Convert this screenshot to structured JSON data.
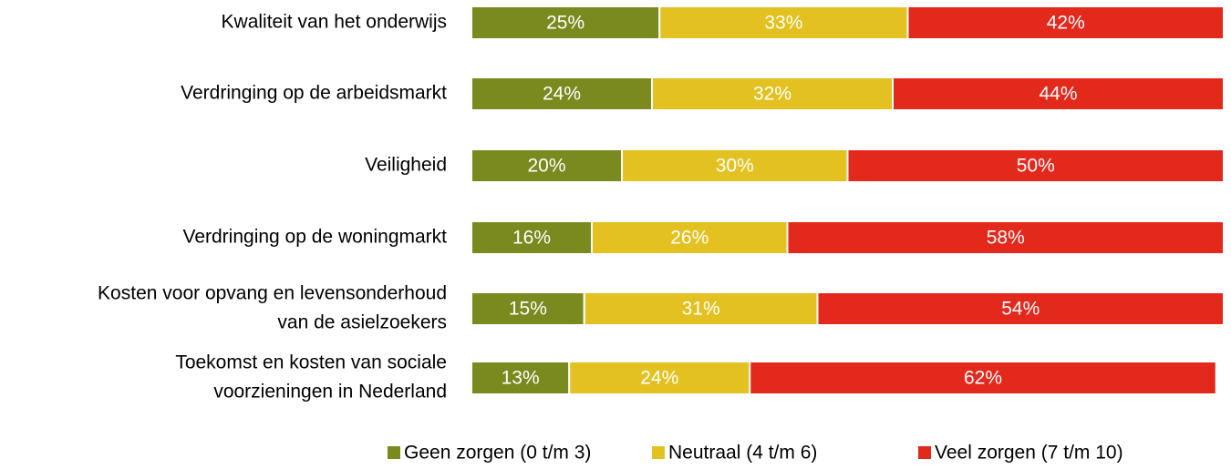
{
  "chart_data": {
    "type": "stacked_barh",
    "categories": [
      [
        "Kwaliteit van het onderwijs"
      ],
      [
        "Verdringing op de arbeidsmarkt"
      ],
      [
        "Veiligheid"
      ],
      [
        "Verdringing op de woningmarkt"
      ],
      [
        "Kosten voor opvang en levensonderhoud",
        "van de asielzoekers"
      ],
      [
        "Toekomst en kosten van sociale",
        "voorzieningen in Nederland"
      ]
    ],
    "series": [
      {
        "name": "Geen zorgen (0 t/m 3)",
        "color": "#7a8a1e",
        "values": [
          25,
          24,
          20,
          16,
          15,
          13
        ],
        "value_labels": [
          "25%",
          "24%",
          "20%",
          "16%",
          "15%",
          "13%"
        ]
      },
      {
        "name": "Neutraal (4 t/m 6)",
        "color": "#e3c120",
        "values": [
          33,
          32,
          30,
          26,
          31,
          24
        ],
        "value_labels": [
          "33%",
          "32%",
          "30%",
          "26%",
          "31%",
          "24%"
        ]
      },
      {
        "name": "Veel zorgen (7 t/m 10)",
        "color": "#e3281c",
        "values": [
          42,
          44,
          50,
          58,
          54,
          62
        ],
        "value_labels": [
          "42%",
          "44%",
          "50%",
          "58%",
          "54%",
          "62%"
        ]
      }
    ],
    "xlim": [
      0,
      100
    ],
    "legend": "bottom"
  }
}
